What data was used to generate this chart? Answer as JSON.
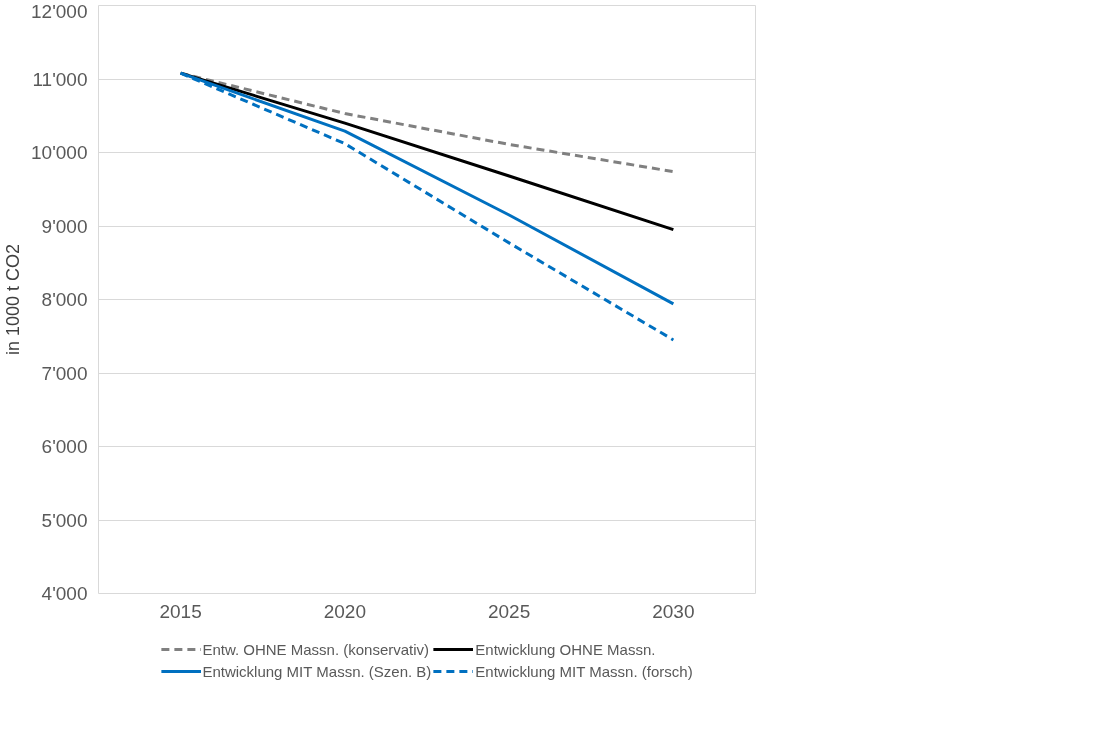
{
  "chart_data": {
    "type": "line",
    "ylabel": "in 1000 t CO2",
    "categories": [
      "2015",
      "2020",
      "2025",
      "2030"
    ],
    "ylim": [
      4000,
      12000
    ],
    "yticks": [
      {
        "value": 4000,
        "label": "4'000"
      },
      {
        "value": 5000,
        "label": "5'000"
      },
      {
        "value": 6000,
        "label": "6'000"
      },
      {
        "value": 7000,
        "label": "7'000"
      },
      {
        "value": 8000,
        "label": "8'000"
      },
      {
        "value": 9000,
        "label": "9'000"
      },
      {
        "value": 10000,
        "label": "10'000"
      },
      {
        "value": 11000,
        "label": "11'000"
      },
      {
        "value": 12000,
        "label": "12'000"
      }
    ],
    "grid": "y",
    "legend": "bottom",
    "series": [
      {
        "name": "Entw. OHNE Massn. (konservativ)",
        "color": "#808080",
        "line_style": "dashed",
        "values": [
          11080,
          10530,
          10110,
          9740
        ]
      },
      {
        "name": "Entwicklung OHNE Massn.",
        "color": "#000000",
        "line_style": "solid",
        "values": [
          11080,
          10400,
          9680,
          8950
        ]
      },
      {
        "name": "Entwicklung MIT Massn. (Szen. B)",
        "color": "#0070c0",
        "line_style": "solid",
        "values": [
          11080,
          10290,
          9150,
          7940
        ]
      },
      {
        "name": "Entwicklung MIT Massn. (forsch)",
        "color": "#0070c0",
        "line_style": "dashed",
        "values": [
          11080,
          10120,
          8770,
          7450
        ]
      }
    ]
  }
}
